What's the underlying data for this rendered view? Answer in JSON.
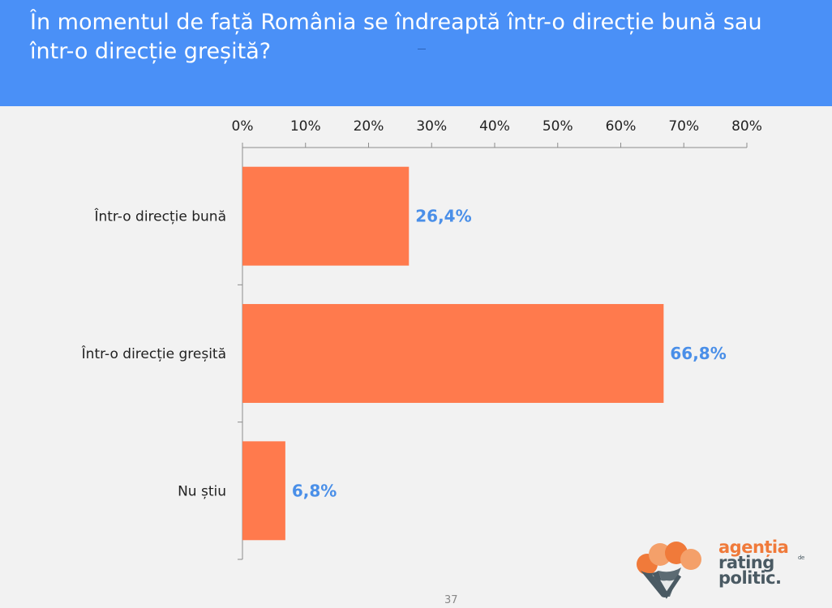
{
  "header": {
    "title": "În momentul de față România se îndreaptă într-o direcție bună sau într-o direcție greșită?",
    "color": "#4a90f7"
  },
  "chart_data": {
    "type": "bar",
    "orientation": "horizontal",
    "categories": [
      "Într-o direcție bună",
      "Într-o direcție greșită",
      "Nu știu"
    ],
    "values": [
      26.4,
      66.8,
      6.8
    ],
    "value_labels": [
      "26,4%",
      "66,8%",
      "6,8%"
    ],
    "x_ticks": [
      "0%",
      "10%",
      "20%",
      "30%",
      "40%",
      "50%",
      "60%",
      "70%",
      "80%"
    ],
    "xlim": [
      0,
      80
    ],
    "x_axis_position": "top",
    "grid": false,
    "bar_color": "#ff7a4d",
    "label_color": "#4a8fe8"
  },
  "footer": {
    "page_number": "37"
  },
  "logo": {
    "line1": "agenția",
    "small": "de",
    "line2": "rating",
    "line3": "politic."
  }
}
